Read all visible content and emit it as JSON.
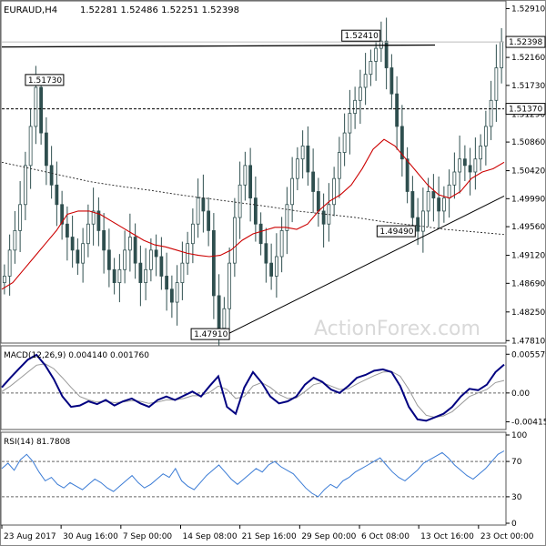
{
  "header": {
    "symbol": "EURAUD,H4",
    "ohlc": "1.52281 1.52486 1.52251 1.52398"
  },
  "watermark": "ActionForex.com",
  "chart_data": [
    {
      "type": "candlestick",
      "ylim": [
        1.478,
        1.53
      ],
      "yticks": [
        "1.52910",
        "1.52160",
        "1.51730",
        "1.51290",
        "1.50860",
        "1.50420",
        "1.49990",
        "1.49560",
        "1.49120",
        "1.48690",
        "1.48250",
        "1.47810"
      ],
      "ytick_values": [
        1.5291,
        1.5216,
        1.5173,
        1.5129,
        1.5086,
        1.5042,
        1.4999,
        1.4956,
        1.4912,
        1.4869,
        1.4825,
        1.4781
      ],
      "current_price": "1.52398",
      "current_price_value": 1.52398,
      "dashed_level": "1.51370",
      "dashed_level_value": 1.5137,
      "annotations": [
        {
          "label": "1.51730",
          "value": 1.5173,
          "anchor": 0.085
        },
        {
          "label": "1.52410",
          "value": 1.5241,
          "anchor": 0.715
        },
        {
          "label": "1.49490",
          "value": 1.4949,
          "anchor": 0.785
        },
        {
          "label": "1.47910",
          "value": 1.4791,
          "anchor": 0.415
        }
      ],
      "close_series": [
        1.488,
        1.492,
        1.495,
        1.499,
        1.505,
        1.511,
        1.517,
        1.51,
        1.505,
        1.502,
        1.499,
        1.496,
        1.494,
        1.492,
        1.49,
        1.493,
        1.496,
        1.498,
        1.495,
        1.492,
        1.489,
        1.487,
        1.489,
        1.492,
        1.494,
        1.49,
        1.487,
        1.489,
        1.492,
        1.491,
        1.488,
        1.486,
        1.484,
        1.487,
        1.49,
        1.493,
        1.496,
        1.5,
        1.498,
        1.495,
        1.485,
        1.48,
        1.483,
        1.49,
        1.497,
        1.502,
        1.505,
        1.5,
        1.496,
        1.493,
        1.49,
        1.488,
        1.491,
        1.495,
        1.499,
        1.503,
        1.506,
        1.508,
        1.504,
        1.501,
        1.498,
        1.496,
        1.499,
        1.503,
        1.507,
        1.51,
        1.513,
        1.515,
        1.517,
        1.519,
        1.521,
        1.523,
        1.5241,
        1.52,
        1.516,
        1.511,
        1.506,
        1.501,
        1.497,
        1.4949,
        1.498,
        1.501,
        1.5,
        1.498,
        1.5,
        1.502,
        1.504,
        1.506,
        1.505,
        1.504,
        1.506,
        1.508,
        1.511,
        1.515,
        1.52,
        1.524
      ],
      "sma_short": [
        1.486,
        1.487,
        1.489,
        1.491,
        1.493,
        1.495,
        1.4975,
        1.498,
        1.498,
        1.4975,
        1.4965,
        1.4955,
        1.4945,
        1.4935,
        1.4928,
        1.4925,
        1.492,
        1.4915,
        1.4912,
        1.491,
        1.4912,
        1.492,
        1.4935,
        1.4945,
        1.495,
        1.4955,
        1.4955,
        1.4952,
        1.496,
        1.498,
        1.4995,
        1.5005,
        1.502,
        1.5045,
        1.5075,
        1.509,
        1.508,
        1.506,
        1.504,
        1.502,
        1.5005,
        1.5,
        1.501,
        1.503,
        1.504,
        1.5045,
        1.5055
      ],
      "sma_long": [
        1.5055,
        1.5045,
        1.5035,
        1.5025,
        1.5018,
        1.5012,
        1.5005,
        1.4999,
        1.4993,
        1.4987,
        1.498,
        1.4975,
        1.497,
        1.4963,
        1.4958,
        1.4952,
        1.4948,
        1.4944
      ]
    },
    {
      "type": "line",
      "label": "MACD(12,26,9) 0.004140 0.001760",
      "yticks": [
        "0.005579",
        "0.00",
        "-0.004156"
      ],
      "ytick_values": [
        0.005579,
        0.0,
        -0.004156
      ],
      "ylim": [
        -0.005,
        0.0064
      ],
      "macd_series": [
        0.0008,
        0.0022,
        0.0035,
        0.0048,
        0.0055,
        0.004,
        0.002,
        -0.0005,
        -0.002,
        -0.0018,
        -0.0012,
        -0.0016,
        -0.001,
        -0.0018,
        -0.0012,
        -0.0008,
        -0.0015,
        -0.002,
        -0.001,
        -0.0005,
        -0.001,
        -0.0004,
        0.0002,
        -0.0005,
        0.001,
        0.0024,
        -0.002,
        -0.003,
        0.0008,
        0.003,
        0.0015,
        -0.0005,
        -0.0015,
        -0.0012,
        -0.0005,
        0.0012,
        0.0022,
        0.0016,
        0.0005,
        0.0,
        0.001,
        0.0022,
        0.0026,
        0.0032,
        0.0034,
        0.003,
        0.001,
        -0.002,
        -0.0038,
        -0.004,
        -0.0035,
        -0.003,
        -0.002,
        -0.0005,
        0.0006,
        0.0004,
        0.0012,
        0.003,
        0.0041
      ],
      "signal_series": [
        0.0002,
        0.001,
        0.002,
        0.003,
        0.004,
        0.0042,
        0.0035,
        0.0022,
        0.0008,
        -0.0005,
        -0.001,
        -0.0013,
        -0.0012,
        -0.0014,
        -0.0013,
        -0.0011,
        -0.0012,
        -0.0015,
        -0.0013,
        -0.001,
        -0.001,
        -0.0008,
        -0.0004,
        -0.0004,
        0.0001,
        0.001,
        0.0005,
        -0.0008,
        -0.0005,
        0.001,
        0.0015,
        0.0008,
        -0.0002,
        -0.0008,
        -0.0007,
        0.0002,
        0.0012,
        0.0015,
        0.001,
        0.0005,
        0.0006,
        0.0013,
        0.0019,
        0.0025,
        0.003,
        0.0031,
        0.0024,
        0.0005,
        -0.0018,
        -0.0032,
        -0.0035,
        -0.0033,
        -0.0027,
        -0.0016,
        -0.0005,
        0.0,
        0.0005,
        0.0015,
        0.0018
      ]
    },
    {
      "type": "line",
      "label": "RSI(14) 81.7808",
      "yticks": [
        "100",
        "70",
        "30",
        "0"
      ],
      "ytick_values": [
        100,
        70,
        30,
        0
      ],
      "ylim": [
        0,
        100
      ],
      "rsi_series": [
        62,
        68,
        60,
        72,
        78,
        70,
        58,
        48,
        52,
        44,
        40,
        46,
        42,
        38,
        44,
        50,
        46,
        40,
        36,
        42,
        48,
        54,
        46,
        40,
        44,
        50,
        56,
        52,
        62,
        48,
        42,
        38,
        46,
        54,
        60,
        66,
        58,
        50,
        44,
        50,
        56,
        62,
        58,
        66,
        70,
        64,
        60,
        56,
        48,
        40,
        34,
        30,
        38,
        44,
        40,
        48,
        52,
        58,
        62,
        66,
        70,
        74,
        66,
        58,
        52,
        48,
        54,
        60,
        68,
        72,
        76,
        80,
        74,
        66,
        60,
        54,
        50,
        56,
        62,
        70,
        78,
        82
      ]
    }
  ],
  "x_axis": {
    "ticks": [
      "23 Aug 2017",
      "30 Aug 16:00",
      "7 Sep 00:00",
      "14 Sep 08:00",
      "21 Sep 16:00",
      "29 Sep 00:00",
      "6 Oct 08:00",
      "13 Oct 16:00",
      "23 Oct 00:00"
    ],
    "tick_fractions": [
      0.0,
      0.118,
      0.237,
      0.356,
      0.474,
      0.593,
      0.712,
      0.83,
      0.949
    ]
  },
  "colors": {
    "candle": "#2f4f4f",
    "sma_short": "#cc0000",
    "sma_long": "#222222",
    "trendline": "#000000",
    "macd": "#000080",
    "signal": "#999999",
    "rsi": "#3a7bd5",
    "grid": "#888888",
    "watermark": "#d9d9d9"
  }
}
